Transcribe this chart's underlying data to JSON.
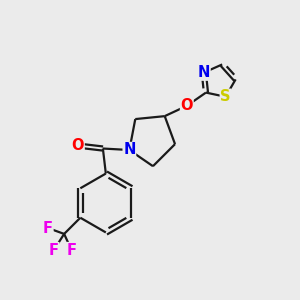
{
  "background_color": "#ebebeb",
  "bond_color": "#1a1a1a",
  "atom_colors": {
    "O": "#ff0000",
    "N": "#0000ee",
    "S": "#cccc00",
    "F": "#ee00ee",
    "C": "#1a1a1a"
  },
  "bond_lw": 1.6,
  "font_size_atom": 10.5
}
